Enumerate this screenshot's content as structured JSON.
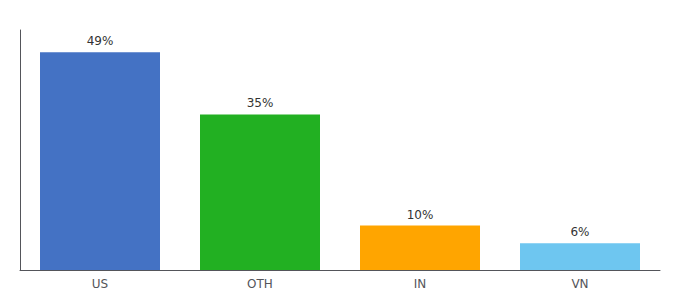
{
  "chart_data": {
    "type": "bar",
    "categories": [
      "US",
      "OTH",
      "IN",
      "VN"
    ],
    "values": [
      49,
      35,
      10,
      6
    ],
    "value_labels": [
      "49%",
      "35%",
      "10%",
      "6%"
    ],
    "colors": [
      "#4472C4",
      "#22B022",
      "#FFA500",
      "#6EC6F0"
    ],
    "ylim": [
      0,
      54
    ],
    "grid": false,
    "data_labels": true,
    "tick_labels": "x"
  }
}
